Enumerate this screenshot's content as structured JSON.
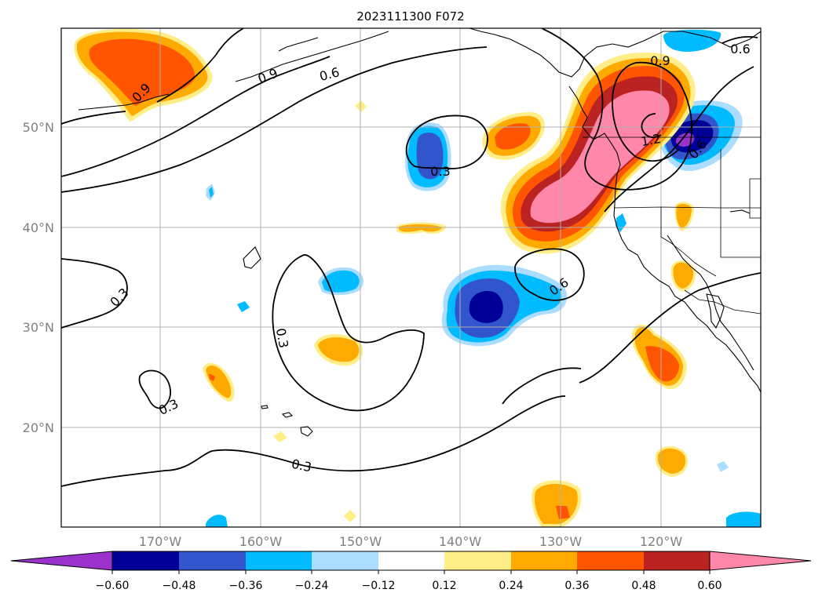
{
  "title": "2023111300 F072",
  "map": {
    "lat_ticks": [
      "50°N",
      "40°N",
      "30°N",
      "20°N"
    ],
    "lon_ticks": [
      "170°W",
      "160°W",
      "150°W",
      "140°W",
      "130°W",
      "120°W"
    ],
    "contour_labels": [
      "0.9",
      "0.9",
      "0.6",
      "0.9",
      "0.3",
      "1.2",
      "0.6",
      "0.3",
      "0.3",
      "0.6",
      "0.3",
      "0.3",
      "0.6"
    ],
    "label_color": "#808080"
  },
  "colorbar": {
    "colors": [
      "#9933cc",
      "#000099",
      "#3355cc",
      "#00bbff",
      "#aaddff",
      "#ffffff",
      "#ffee88",
      "#ffaa00",
      "#ff5500",
      "#bb2222",
      "#ff88aa"
    ],
    "tick_labels": [
      "−0.60",
      "−0.48",
      "−0.36",
      "−0.24",
      "−0.12",
      "0.12",
      "0.24",
      "0.36",
      "0.48",
      "0.60"
    ]
  }
}
